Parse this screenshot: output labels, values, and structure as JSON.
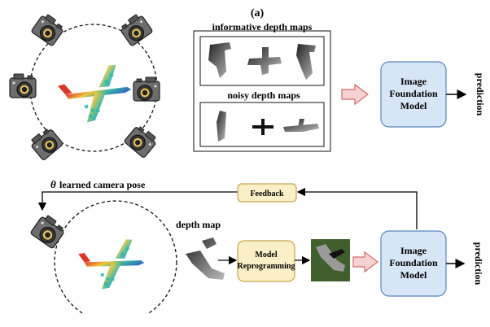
{
  "panel_label": "(a)",
  "top": {
    "informative_label": "informative depth maps",
    "noisy_label": "noisy depth maps",
    "model_label": [
      "Image",
      "Foundation",
      "Model"
    ],
    "prediction_label": "prediction"
  },
  "bottom": {
    "pose_label": "learned camera pose",
    "theta_symbol": "θ",
    "feedback_label": "Feedback",
    "depth_map_label": "depth map",
    "reprogramming_label": [
      "Model",
      "Reprogramming"
    ],
    "model_label": [
      "Image",
      "Foundation",
      "Model"
    ],
    "prediction_label": "prediction"
  },
  "colors": {
    "model_box_fill": "#d6e6f7",
    "model_box_stroke": "#5a86c0",
    "feedback_box_fill": "#fbefc8",
    "feedback_box_stroke": "#c9a44a",
    "arrow_fill": "#f6d2d2",
    "arrow_stroke": "#d46a6a",
    "green_thumb": "#3f5f2d"
  },
  "icons": [
    "camera-icon",
    "airplane-point-cloud",
    "depth-map-thumbnail"
  ]
}
